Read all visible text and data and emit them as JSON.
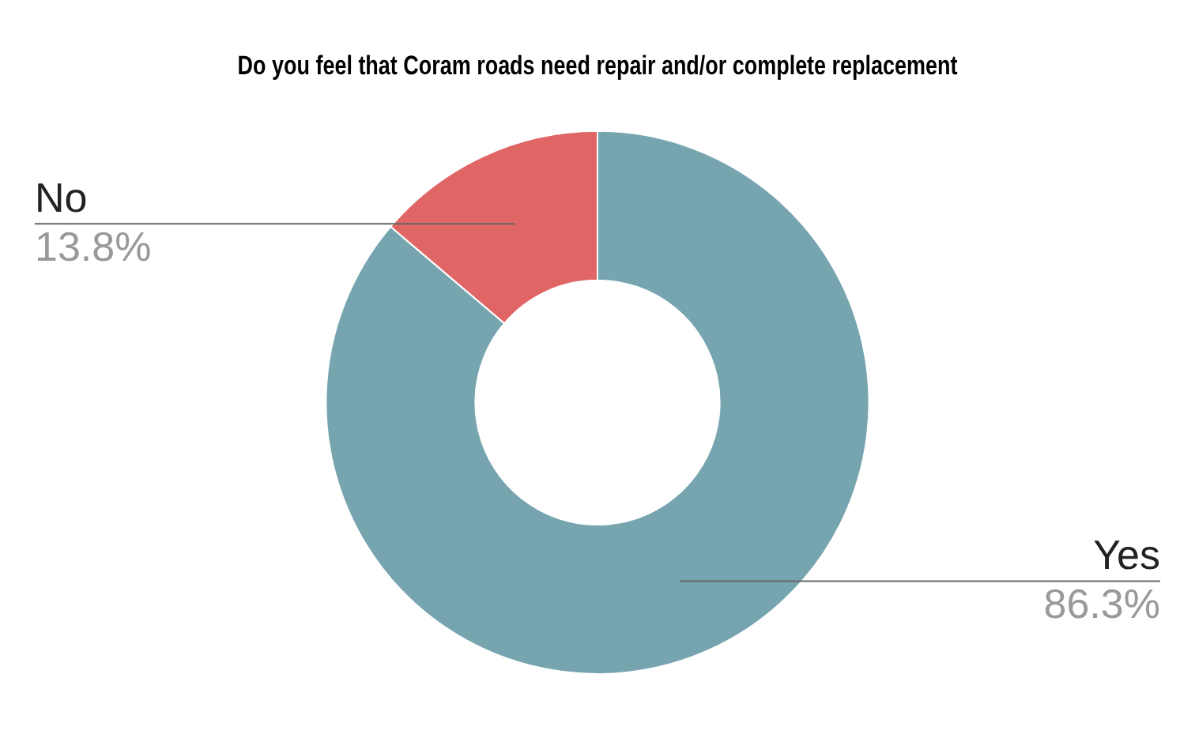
{
  "chart_data": {
    "type": "donut",
    "title": "Do you feel that Coram roads need repair and/or complete replacement",
    "categories": [
      "Yes",
      "No"
    ],
    "values": [
      86.3,
      13.8
    ],
    "colors": [
      "#76a5af",
      "#e06666"
    ],
    "value_labels": [
      "86.3%",
      "13.8%"
    ],
    "legend": false
  }
}
